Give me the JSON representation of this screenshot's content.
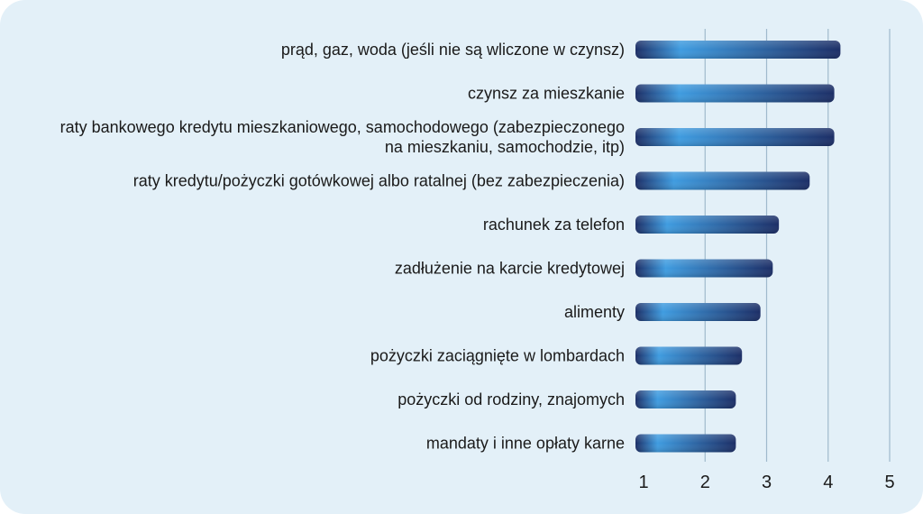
{
  "chart_data": {
    "type": "bar",
    "orientation": "horizontal",
    "categories": [
      [
        "prąd, gaz, woda (jeśli nie są wliczone w czynsz)"
      ],
      [
        "czynsz za mieszkanie"
      ],
      [
        "raty bankowego kredytu mieszkaniowego, samochodowego (zabezpieczonego",
        "na mieszkaniu, samochodzie, itp)"
      ],
      [
        "raty kredytu/pożyczki gotówkowej albo ratalnej (bez zabezpieczenia)"
      ],
      [
        "rachunek za telefon"
      ],
      [
        "zadłużenie na karcie kredytowej"
      ],
      [
        "alimenty"
      ],
      [
        "pożyczki zaciągnięte w lombardach"
      ],
      [
        "pożyczki od rodziny, znajomych"
      ],
      [
        "mandaty i inne opłaty karne"
      ]
    ],
    "values": [
      4.2,
      4.1,
      4.1,
      3.7,
      3.2,
      3.1,
      2.9,
      2.6,
      2.5,
      2.5
    ],
    "xlim": [
      1,
      5
    ],
    "xticks": [
      "1",
      "2",
      "3",
      "4",
      "5"
    ],
    "grid": "vertical",
    "colors": {
      "bar_dark": "#1c2e66",
      "bar_light": "#3f9ce0",
      "grid": "#9fb9cc",
      "panel": "#e3f0f8"
    }
  }
}
